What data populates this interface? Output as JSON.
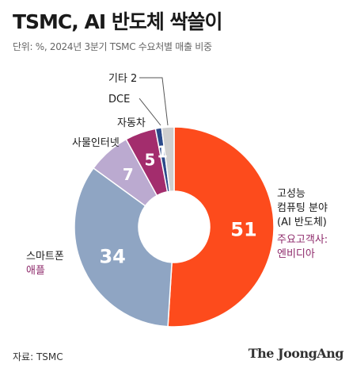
{
  "title": "TSMC, AI 반도체 싹쓸이",
  "subtitle": "단위: %, 2024년 3분기 TSMC 수요처별 매출 비중",
  "source": "자료: TSMC",
  "brand": "The JoongAng",
  "colors": {
    "hpc": "#fd4b1c",
    "smartphone": "#8fa5c3",
    "iot": "#bbaad0",
    "auto": "#a32d6d",
    "dce": "#2b4a8a",
    "other": "#cfcfcf",
    "accent": "#8e2a6b"
  },
  "chart_data": {
    "type": "pie",
    "style": "donut",
    "title": "TSMC, AI 반도체 싹쓸이",
    "subtitle": "단위: %, 2024년 3분기 TSMC 수요처별 매출 비중",
    "unit": "%",
    "slices": [
      {
        "label": "고성능 컴퓨팅 분야 (AI 반도체)",
        "value": 51,
        "value_label": "51",
        "color": "#fd4b1c",
        "note": "주요고객사: 엔비디아"
      },
      {
        "label": "스마트폰",
        "value": 34,
        "value_label": "34",
        "color": "#8fa5c3",
        "note": "애플"
      },
      {
        "label": "사물인터넷",
        "value": 7,
        "value_label": "7",
        "color": "#bbaad0"
      },
      {
        "label": "자동차",
        "value": 5,
        "value_label": "5",
        "color": "#a32d6d"
      },
      {
        "label": "DCE",
        "value": 1,
        "value_label": "1",
        "color": "#2b4a8a"
      },
      {
        "label": "기타",
        "value": 2,
        "value_label": "",
        "color": "#cfcfcf"
      }
    ],
    "external_labels": {
      "hpc": [
        "고성능",
        "컴퓨팅 분야",
        "(AI 반도체)"
      ],
      "hpc_note": [
        "주요고객사:",
        "엔비디아"
      ],
      "smartphone": "스마트폰",
      "smartphone_note": "애플",
      "iot": "사물인터넷",
      "auto": "자동차",
      "dce": "DCE",
      "other": "기타 2"
    }
  }
}
